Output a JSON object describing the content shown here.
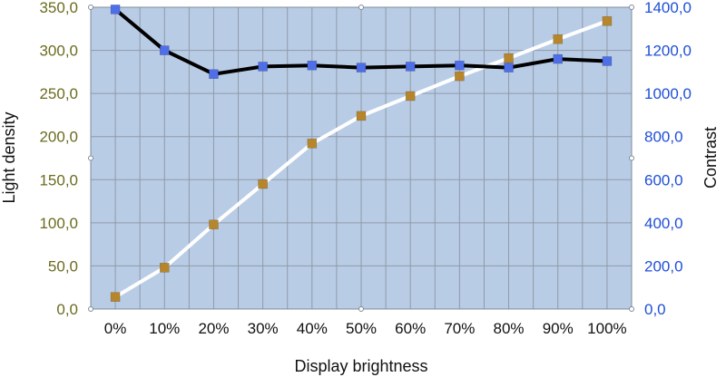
{
  "chart_data": {
    "type": "line",
    "xlabel": "Display brightness",
    "ylabel_left": "Light density",
    "ylabel_right": "Contrast",
    "categories": [
      "0%",
      "10%",
      "20%",
      "30%",
      "40%",
      "50%",
      "60%",
      "70%",
      "80%",
      "90%",
      "100%"
    ],
    "y_left": {
      "min": 0,
      "max": 350,
      "ticks": [
        "0,0",
        "50,0",
        "100,0",
        "150,0",
        "200,0",
        "250,0",
        "300,0",
        "350,0"
      ]
    },
    "y_right": {
      "min": 0,
      "max": 1400,
      "ticks": [
        "0,0",
        "200,0",
        "400,0",
        "600,0",
        "800,0",
        "1000,0",
        "1200,0",
        "1400,0"
      ]
    },
    "grid": true,
    "series": [
      {
        "axis": "left",
        "line_color": "#ffffff",
        "marker_color": "#b8862a",
        "values": [
          14,
          48,
          98,
          145,
          192,
          224,
          247,
          270,
          291,
          313,
          334
        ]
      },
      {
        "axis": "right",
        "line_color": "#000000",
        "marker_color": "#4f6fe8",
        "values": [
          1390,
          1200,
          1090,
          1125,
          1130,
          1120,
          1125,
          1130,
          1120,
          1160,
          1150
        ]
      }
    ],
    "colors": {
      "plot_bg": "#b9cce6",
      "grid": "#8f9aa6",
      "left_axis_text": "#6b6b1f",
      "right_axis_text": "#1f4fd8"
    }
  }
}
